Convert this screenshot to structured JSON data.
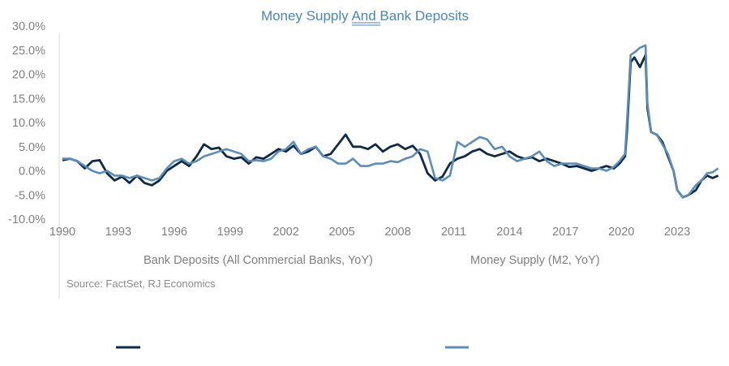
{
  "chart_data": {
    "type": "line",
    "title": "Money Supply And Bank Deposits",
    "source": "Source: FactSet, RJ Economics",
    "y_ticks": [
      "30.0%",
      "25.0%",
      "20.0%",
      "15.0%",
      "10.0%",
      "5.0%",
      "0.0%",
      "-5.0%",
      "-10.0%"
    ],
    "y_tick_values": [
      30,
      25,
      20,
      15,
      10,
      5,
      0,
      -5,
      -10
    ],
    "x_ticks": [
      "1990",
      "1993",
      "1996",
      "1999",
      "2002",
      "2005",
      "2008",
      "2011",
      "2014",
      "2017",
      "2020",
      "2023"
    ],
    "x_tick_values": [
      1990,
      1993,
      1996,
      1999,
      2002,
      2005,
      2008,
      2011,
      2014,
      2017,
      2020,
      2023
    ],
    "xlim": [
      1990,
      2025.3
    ],
    "ylim": [
      -10,
      30
    ],
    "grid": false,
    "colors": {
      "title": "#4a86b8",
      "deposits": "#0f2a47",
      "m2": "#5b8db8",
      "ticks": "#7f7f7f"
    },
    "series": [
      {
        "name": "Bank Deposits (All Commercial Banks, YoY)",
        "color": "#0f2a47",
        "x": [
          1990,
          1990.4,
          1990.8,
          1991.2,
          1991.6,
          1992.0,
          1992.4,
          1992.8,
          1993.2,
          1993.6,
          1994.0,
          1994.4,
          1994.8,
          1995.2,
          1995.6,
          1996.0,
          1996.4,
          1996.8,
          1997.2,
          1997.6,
          1998.0,
          1998.4,
          1998.8,
          1999.2,
          1999.6,
          2000.0,
          2000.4,
          2000.8,
          2001.2,
          2001.6,
          2002.0,
          2002.4,
          2002.8,
          2003.2,
          2003.6,
          2004.0,
          2004.4,
          2004.8,
          2005.2,
          2005.6,
          2006.0,
          2006.4,
          2006.8,
          2007.2,
          2007.6,
          2008.0,
          2008.4,
          2008.8,
          2009.2,
          2009.6,
          2010.0,
          2010.4,
          2010.8,
          2011.2,
          2011.6,
          2012.0,
          2012.4,
          2012.8,
          2013.2,
          2013.6,
          2014.0,
          2014.4,
          2014.8,
          2015.2,
          2015.6,
          2016.0,
          2016.4,
          2016.8,
          2017.2,
          2017.6,
          2018.0,
          2018.4,
          2018.8,
          2019.2,
          2019.6,
          2019.9,
          2020.2,
          2020.3,
          2020.5,
          2020.7,
          2021.0,
          2021.3,
          2021.4,
          2021.6,
          2021.9,
          2022.2,
          2022.5,
          2022.8,
          2023.0,
          2023.3,
          2023.6,
          2024.0,
          2024.3,
          2024.6,
          2024.9,
          2025.2
        ],
        "y": [
          2.2,
          2.5,
          2.0,
          0.5,
          2.0,
          2.2,
          -0.5,
          -2.0,
          -1.2,
          -2.5,
          -1.0,
          -2.5,
          -3.0,
          -2.0,
          0.0,
          1.0,
          2.0,
          1.0,
          3.0,
          5.5,
          4.5,
          4.8,
          3.0,
          2.5,
          2.8,
          1.5,
          2.8,
          2.5,
          3.5,
          4.5,
          4.0,
          5.2,
          3.5,
          4.0,
          5.0,
          3.0,
          3.5,
          5.5,
          7.5,
          5.0,
          5.0,
          4.5,
          5.5,
          4.0,
          5.0,
          5.5,
          4.5,
          5.2,
          3.5,
          -0.5,
          -2.0,
          -1.2,
          1.5,
          2.5,
          3.0,
          4.0,
          4.5,
          3.5,
          3.0,
          3.5,
          4.0,
          3.0,
          2.5,
          2.8,
          2.0,
          2.5,
          2.0,
          1.5,
          0.8,
          1.0,
          0.5,
          0.0,
          0.5,
          1.0,
          0.5,
          1.5,
          3.0,
          8.0,
          22.5,
          23.5,
          21.5,
          24.0,
          13.0,
          8.0,
          7.5,
          6.0,
          3.0,
          0.0,
          -4.0,
          -5.5,
          -5.0,
          -4.0,
          -2.0,
          -1.0,
          -1.5,
          -1.0
        ]
      },
      {
        "name": "Money Supply (M2, YoY)",
        "color": "#5b8db8",
        "x": [
          1990,
          1990.4,
          1990.8,
          1991.2,
          1991.6,
          1992.0,
          1992.4,
          1992.8,
          1993.2,
          1993.6,
          1994.0,
          1994.4,
          1994.8,
          1995.2,
          1995.6,
          1996.0,
          1996.4,
          1996.8,
          1997.2,
          1997.6,
          1998.0,
          1998.4,
          1998.8,
          1999.2,
          1999.6,
          2000.0,
          2000.4,
          2000.8,
          2001.2,
          2001.6,
          2002.0,
          2002.4,
          2002.8,
          2003.2,
          2003.6,
          2004.0,
          2004.4,
          2004.8,
          2005.2,
          2005.6,
          2006.0,
          2006.4,
          2006.8,
          2007.2,
          2007.6,
          2008.0,
          2008.4,
          2008.8,
          2009.2,
          2009.6,
          2010.0,
          2010.4,
          2010.8,
          2011.2,
          2011.6,
          2012.0,
          2012.4,
          2012.8,
          2013.2,
          2013.6,
          2014.0,
          2014.4,
          2014.8,
          2015.2,
          2015.6,
          2016.0,
          2016.4,
          2016.8,
          2017.2,
          2017.6,
          2018.0,
          2018.4,
          2018.8,
          2019.2,
          2019.6,
          2019.9,
          2020.2,
          2020.3,
          2020.5,
          2020.7,
          2021.0,
          2021.3,
          2021.4,
          2021.6,
          2021.9,
          2022.2,
          2022.5,
          2022.8,
          2023.0,
          2023.3,
          2023.6,
          2024.0,
          2024.3,
          2024.6,
          2024.9,
          2025.2
        ],
        "y": [
          2.5,
          2.5,
          2.0,
          1.0,
          0.0,
          -0.5,
          0.0,
          -1.0,
          -1.0,
          -1.5,
          -1.0,
          -1.5,
          -2.0,
          -1.5,
          0.5,
          2.0,
          2.5,
          1.5,
          2.0,
          3.0,
          3.5,
          4.0,
          4.5,
          4.0,
          3.5,
          2.0,
          2.2,
          2.0,
          2.5,
          4.0,
          4.5,
          6.0,
          3.5,
          4.5,
          5.0,
          3.0,
          2.5,
          1.5,
          1.5,
          2.5,
          1.0,
          1.0,
          1.5,
          1.5,
          2.0,
          1.8,
          2.5,
          3.0,
          4.5,
          4.0,
          -1.5,
          -2.0,
          -1.0,
          6.0,
          5.0,
          6.0,
          7.0,
          6.5,
          4.5,
          5.0,
          3.0,
          2.0,
          2.5,
          3.0,
          4.0,
          2.0,
          1.0,
          1.5,
          1.5,
          1.5,
          1.0,
          0.5,
          0.5,
          0.0,
          0.8,
          2.0,
          3.5,
          10.0,
          24.0,
          24.5,
          25.5,
          26.0,
          14.0,
          8.0,
          7.5,
          5.5,
          3.5,
          0.0,
          -4.0,
          -5.5,
          -5.0,
          -3.0,
          -2.0,
          -0.5,
          -0.3,
          0.5
        ]
      }
    ]
  }
}
